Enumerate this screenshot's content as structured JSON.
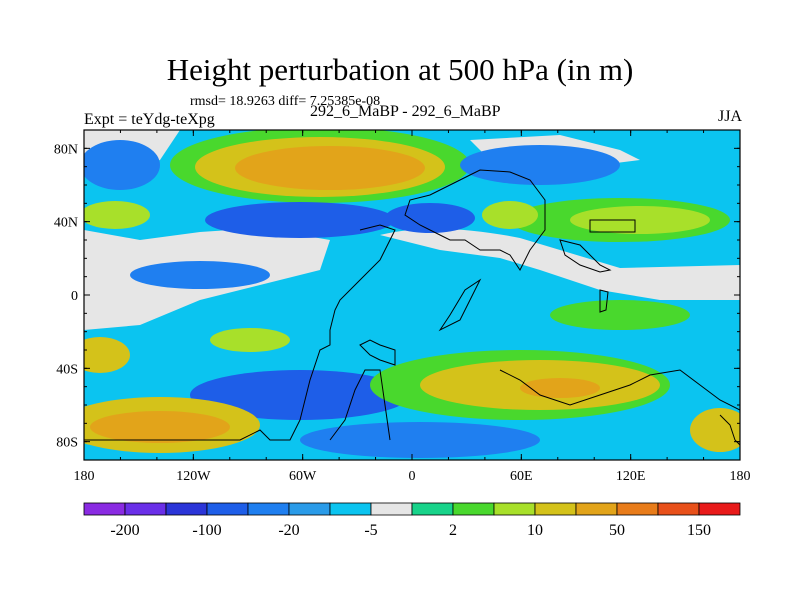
{
  "title": "Height perturbation at 500 hPa (in m)",
  "stats": "rmsd= 18.9263 diff= 7.25385e-08",
  "experiment": "Expt = teYdg-teXpg",
  "runs": "292_6_MaBP - 292_6_MaBP",
  "season": "JJA",
  "map": {
    "lon_ticks": [
      "180",
      "120W",
      "60W",
      "0",
      "60E",
      "120E",
      "180"
    ],
    "lat_ticks": [
      "80N",
      "40N",
      "0",
      "40S",
      "80S"
    ],
    "ocean_color": "#0bc4f0"
  },
  "colorbar": {
    "colors": [
      "#8a2be2",
      "#6a2fe8",
      "#2b35d8",
      "#1e5ee8",
      "#1f7ff0",
      "#2a9be8",
      "#0bc4f0",
      "#e6e6e6",
      "#18d38a",
      "#49d82d",
      "#a8e02a",
      "#d4c21a",
      "#e2a41a",
      "#e87c1a",
      "#e8501a",
      "#e81a1a"
    ],
    "labels": [
      "-200",
      "-100",
      "-20",
      "-5",
      "2",
      "10",
      "50",
      "150"
    ]
  }
}
